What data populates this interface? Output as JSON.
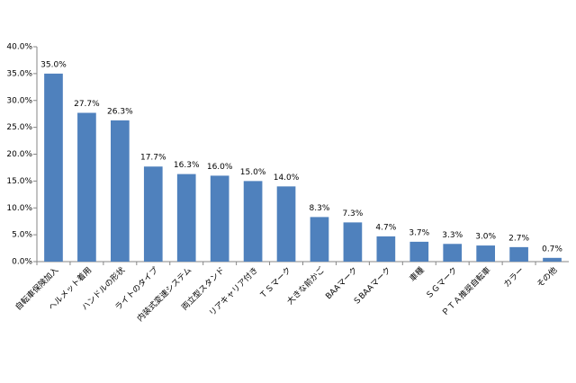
{
  "chart_data": {
    "type": "bar",
    "categories": [
      "自転車保険加入",
      "ヘルメット着用",
      "ハンドルの形状",
      "ライトのタイプ",
      "内装式変速システム",
      "両立型スタンド",
      "リアキャリア付き",
      "ＴＳマーク",
      "大きな前かご",
      "BAAマーク",
      "ＳBAAマーク",
      "車種",
      "ＳＧマーク",
      "ＰＴＡ推奨自転車",
      "カラー",
      "その他"
    ],
    "values": [
      35.0,
      27.7,
      26.3,
      17.7,
      16.3,
      16.0,
      15.0,
      14.0,
      8.3,
      7.3,
      4.7,
      3.7,
      3.3,
      3.0,
      2.7,
      0.7
    ],
    "value_labels": [
      "35.0%",
      "27.7%",
      "26.3%",
      "17.7%",
      "16.3%",
      "16.0%",
      "15.0%",
      "14.0%",
      "8.3%",
      "7.3%",
      "4.7%",
      "3.7%",
      "3.3%",
      "3.0%",
      "2.7%",
      "0.7%"
    ],
    "color": "#4f81bd",
    "ylim": [
      0,
      40
    ],
    "yticks": [
      {
        "value": 0,
        "label": "0.0%"
      },
      {
        "value": 5,
        "label": "5.0%"
      },
      {
        "value": 10,
        "label": "10.0%"
      },
      {
        "value": 15,
        "label": "15.0%"
      },
      {
        "value": 20,
        "label": "20.0%"
      },
      {
        "value": 25,
        "label": "25.0%"
      },
      {
        "value": 30,
        "label": "30.0%"
      },
      {
        "value": 35,
        "label": "35.0%"
      },
      {
        "value": 40,
        "label": "40.0%"
      }
    ],
    "grid": false
  }
}
